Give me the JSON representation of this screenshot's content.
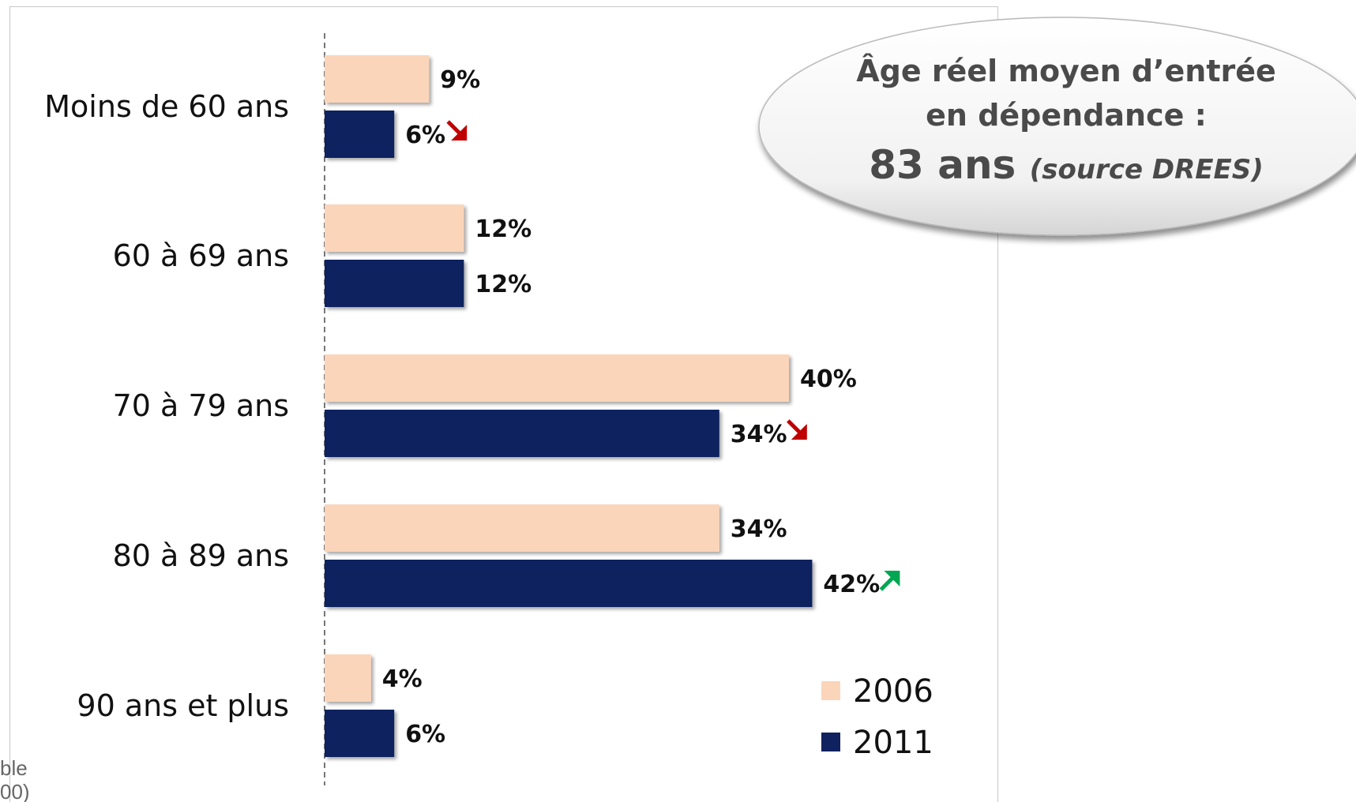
{
  "chart_data": {
    "type": "bar",
    "orientation": "horizontal",
    "categories": [
      "Moins de 60 ans",
      "60 à 69 ans",
      "70 à 79 ans",
      "80 à 89 ans",
      "90 ans et plus"
    ],
    "series": [
      {
        "name": "2006",
        "values": [
          9,
          12,
          40,
          34,
          4
        ],
        "labels": [
          "9%",
          "12%",
          "40%",
          "34%",
          "4%"
        ],
        "color": "#FBD5BA"
      },
      {
        "name": "2011",
        "values": [
          6,
          12,
          34,
          42,
          6
        ],
        "labels": [
          "6%",
          "12%",
          "34%",
          "42%",
          "6%"
        ],
        "color": "#0F215E"
      }
    ],
    "trend_arrows": [
      "down",
      null,
      "down",
      "up",
      null
    ],
    "trend_colors": {
      "down": "#C00000",
      "up": "#00A651"
    },
    "legend_position": "bottom-right",
    "grid": false,
    "xlim": [
      0,
      45
    ]
  },
  "callout": {
    "line1": "Âge réel moyen d’entrée",
    "line2": "en dépendance :",
    "value": "83 ans",
    "source": "(source DREES)"
  },
  "cropped_text": {
    "line1": "ble",
    "line2": "00)"
  }
}
